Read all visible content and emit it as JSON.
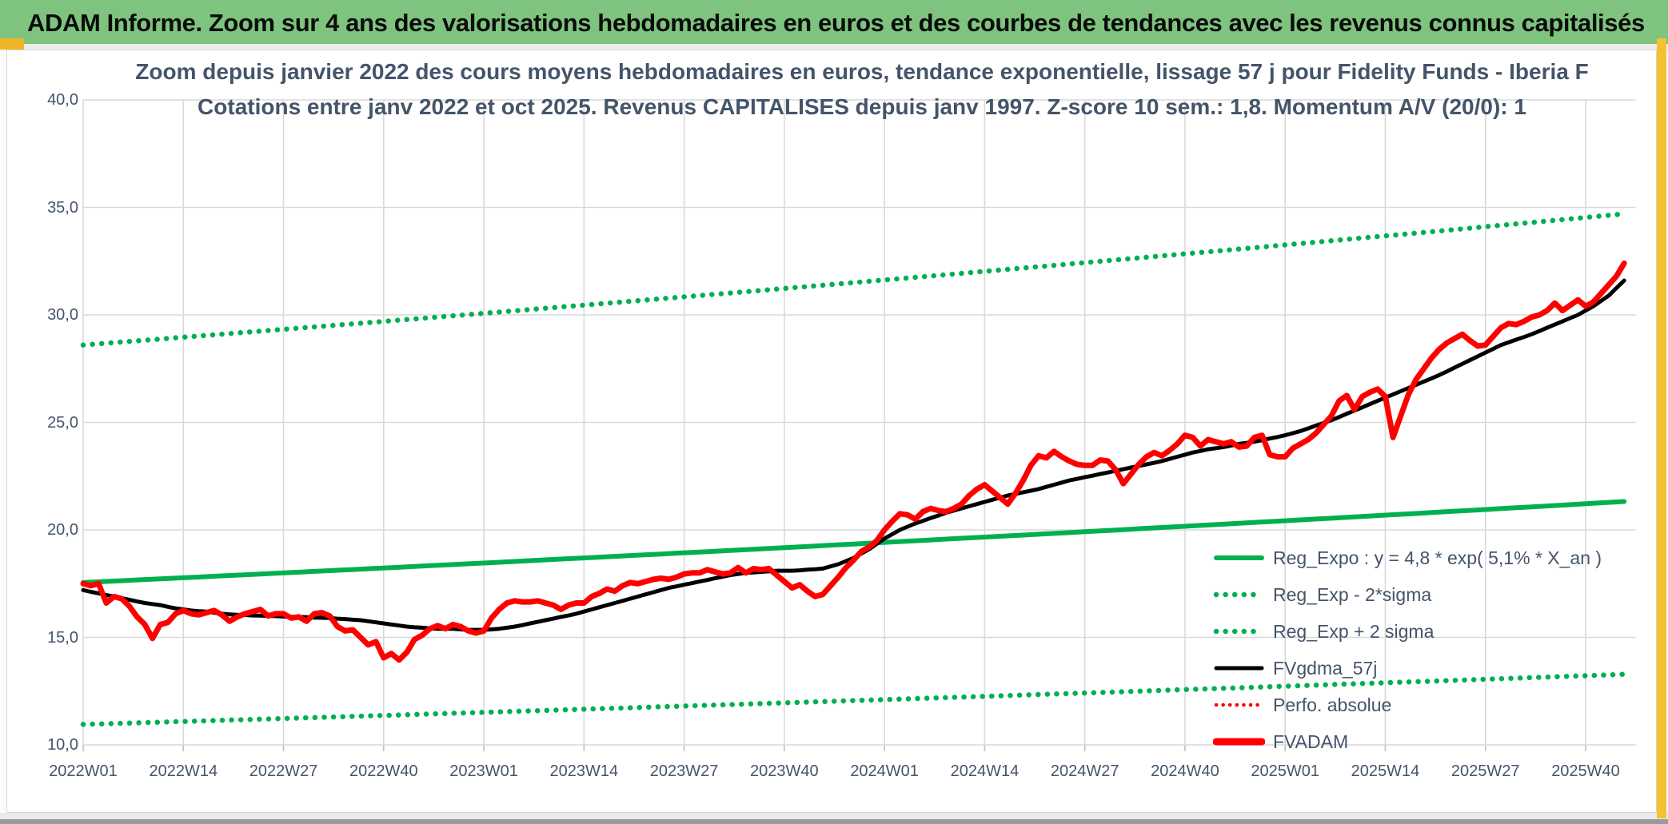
{
  "header": {
    "title": "ADAM Informe. Zoom sur 4 ans des valorisations hebdomadaires en euros et des courbes de tendances avec les revenus connus capitalisés"
  },
  "chart": {
    "title_line1": "Zoom depuis janvier 2022 des cours moyens hebdomadaires en euros, tendance exponentielle, lissage 57 j pour Fidelity Funds - Iberia F",
    "title_line2": "Cotations entre janv 2022 et oct 2025. Revenus CAPITALISES depuis janv 1997. Z-score 10 sem.: 1,8. Momentum A/V (20/0): 1"
  },
  "colors": {
    "header_bg": "#7ec47e",
    "accent_yellow": "#f0b429",
    "green_line": "#00B050",
    "red_line": "#FF0000",
    "black_line": "#000000",
    "grid": "#d9d9d9",
    "tick": "#bfbfbf",
    "text": "#44546a"
  },
  "chart_data": {
    "type": "line",
    "title": "Zoom depuis janvier 2022 des cours moyens hebdomadaires en euros, tendance exponentielle, lissage 57 j pour Fidelity Funds - Iberia F",
    "subtitle": "Cotations entre janv 2022 et oct 2025. Revenus CAPITALISES depuis janv 1997. Z-score 10 sem.: 1,8. Momentum A/V (20/0): 1",
    "x_unit": "week_index_from_2022W01",
    "weeks_per_tick": 13,
    "x_tick_labels": [
      "2022W01",
      "2022W14",
      "2022W27",
      "2022W40",
      "2023W01",
      "2023W14",
      "2023W27",
      "2023W40",
      "2024W01",
      "2024W14",
      "2024W27",
      "2024W40",
      "2025W01",
      "2025W14",
      "2025W27",
      "2025W40"
    ],
    "y_tick_labels": [
      "10,0",
      "15,0",
      "20,0",
      "25,0",
      "30,0",
      "35,0",
      "40,0"
    ],
    "ylim": [
      10,
      40
    ],
    "grid": true,
    "legend_position": "inside-bottom-right",
    "series": [
      {
        "name": "Reg_Expo : y = 4,8 * exp( 5,1% *  X_an )",
        "type": "exp_line",
        "color": "#00B050",
        "style": "solid",
        "width": 6,
        "start_value": 17.55,
        "end_value": 21.35
      },
      {
        "name": "Reg_Exp - 2*sigma",
        "type": "exp_line",
        "color": "#00B050",
        "style": "dotted",
        "width": 6.5,
        "start_value": 10.95,
        "end_value": 13.3
      },
      {
        "name": "Reg_Exp + 2 sigma",
        "type": "exp_line",
        "color": "#00B050",
        "style": "dotted",
        "width": 6.5,
        "start_value": 28.6,
        "end_value": 34.75
      },
      {
        "name": "FVgdma_57j",
        "type": "weekly",
        "color": "#000000",
        "style": "solid",
        "width": 5,
        "values": [
          17.2,
          17.12,
          17.05,
          16.97,
          16.9,
          16.82,
          16.75,
          16.67,
          16.6,
          16.55,
          16.5,
          16.42,
          16.35,
          16.3,
          16.25,
          16.22,
          16.2,
          16.15,
          16.1,
          16.07,
          16.05,
          16.04,
          16.02,
          16.01,
          16.0,
          15.99,
          15.97,
          15.96,
          15.95,
          15.94,
          15.92,
          15.91,
          15.9,
          15.87,
          15.85,
          15.82,
          15.8,
          15.75,
          15.7,
          15.65,
          15.6,
          15.55,
          15.5,
          15.47,
          15.45,
          15.42,
          15.4,
          15.4,
          15.4,
          15.37,
          15.35,
          15.35,
          15.35,
          15.37,
          15.4,
          15.45,
          15.5,
          15.57,
          15.65,
          15.72,
          15.8,
          15.87,
          15.95,
          16.02,
          16.1,
          16.2,
          16.3,
          16.4,
          16.5,
          16.6,
          16.7,
          16.8,
          16.9,
          17.0,
          17.1,
          17.2,
          17.3,
          17.37,
          17.45,
          17.52,
          17.6,
          17.67,
          17.75,
          17.82,
          17.9,
          17.95,
          18.0,
          18.02,
          18.05,
          18.07,
          18.1,
          18.1,
          18.1,
          18.12,
          18.15,
          18.17,
          18.2,
          18.3,
          18.4,
          18.55,
          18.7,
          18.9,
          19.1,
          19.35,
          19.6,
          19.8,
          20.0,
          20.15,
          20.3,
          20.42,
          20.55,
          20.67,
          20.8,
          20.9,
          21.0,
          21.1,
          21.2,
          21.3,
          21.4,
          21.5,
          21.6,
          21.67,
          21.75,
          21.82,
          21.9,
          22.0,
          22.1,
          22.2,
          22.3,
          22.37,
          22.45,
          22.52,
          22.6,
          22.67,
          22.75,
          22.82,
          22.9,
          22.97,
          23.05,
          23.12,
          23.2,
          23.3,
          23.4,
          23.5,
          23.6,
          23.67,
          23.75,
          23.8,
          23.85,
          23.92,
          24.0,
          24.05,
          24.1,
          24.17,
          24.25,
          24.32,
          24.4,
          24.5,
          24.6,
          24.72,
          24.85,
          24.97,
          25.1,
          25.25,
          25.4,
          25.55,
          25.7,
          25.85,
          26.0,
          26.15,
          26.3,
          26.45,
          26.6,
          26.75,
          26.9,
          27.05,
          27.2,
          27.37,
          27.55,
          27.72,
          27.9,
          28.07,
          28.25,
          28.42,
          28.6,
          28.72,
          28.85,
          28.97,
          29.1,
          29.25,
          29.4,
          29.55,
          29.7,
          29.85,
          30.0,
          30.2,
          30.4,
          30.65,
          30.9,
          31.25,
          31.6
        ]
      },
      {
        "name": "Perfo. absolue",
        "type": "weekly",
        "color": "#FF0000",
        "style": "dotted",
        "width": 4.5,
        "same_as": "FVADAM"
      },
      {
        "name": "FVADAM",
        "type": "weekly",
        "color": "#FF0000",
        "style": "solid",
        "width": 7,
        "values": [
          17.5,
          17.4,
          17.5,
          16.6,
          16.9,
          16.8,
          16.45,
          15.95,
          15.6,
          14.95,
          15.6,
          15.7,
          16.1,
          16.25,
          16.1,
          16.05,
          16.15,
          16.25,
          16.05,
          15.75,
          15.95,
          16.1,
          16.2,
          16.3,
          16.0,
          16.1,
          16.1,
          15.9,
          15.95,
          15.75,
          16.1,
          16.15,
          16.0,
          15.5,
          15.3,
          15.35,
          15.0,
          14.65,
          14.8,
          14.05,
          14.25,
          13.95,
          14.3,
          14.9,
          15.1,
          15.4,
          15.55,
          15.4,
          15.6,
          15.5,
          15.3,
          15.2,
          15.3,
          15.9,
          16.3,
          16.6,
          16.7,
          16.65,
          16.65,
          16.7,
          16.6,
          16.5,
          16.3,
          16.5,
          16.6,
          16.6,
          16.9,
          17.05,
          17.25,
          17.15,
          17.4,
          17.55,
          17.5,
          17.6,
          17.7,
          17.75,
          17.7,
          17.8,
          17.95,
          18.0,
          18.0,
          18.15,
          18.05,
          17.95,
          18.0,
          18.25,
          18.0,
          18.2,
          18.15,
          18.2,
          17.9,
          17.6,
          17.3,
          17.45,
          17.15,
          16.9,
          17.0,
          17.4,
          17.8,
          18.25,
          18.6,
          19.0,
          19.2,
          19.5,
          20.0,
          20.4,
          20.75,
          20.7,
          20.5,
          20.85,
          21.0,
          20.9,
          20.85,
          21.0,
          21.2,
          21.6,
          21.9,
          22.1,
          21.8,
          21.5,
          21.2,
          21.7,
          22.3,
          23.0,
          23.45,
          23.35,
          23.65,
          23.4,
          23.2,
          23.05,
          23.0,
          23.0,
          23.25,
          23.2,
          22.8,
          22.15,
          22.6,
          23.05,
          23.4,
          23.6,
          23.45,
          23.7,
          24.0,
          24.4,
          24.3,
          23.9,
          24.2,
          24.1,
          24.0,
          24.1,
          23.85,
          23.9,
          24.3,
          24.4,
          23.5,
          23.4,
          23.4,
          23.8,
          24.0,
          24.2,
          24.5,
          24.9,
          25.3,
          26.0,
          26.25,
          25.6,
          26.2,
          26.4,
          26.55,
          26.2,
          24.3,
          25.3,
          26.3,
          27.0,
          27.5,
          28.0,
          28.4,
          28.7,
          28.9,
          29.1,
          28.8,
          28.55,
          28.6,
          29.0,
          29.4,
          29.6,
          29.55,
          29.7,
          29.9,
          30.0,
          30.2,
          30.55,
          30.2,
          30.45,
          30.7,
          30.4,
          30.6,
          31.0,
          31.4,
          31.8,
          32.4
        ]
      }
    ]
  }
}
